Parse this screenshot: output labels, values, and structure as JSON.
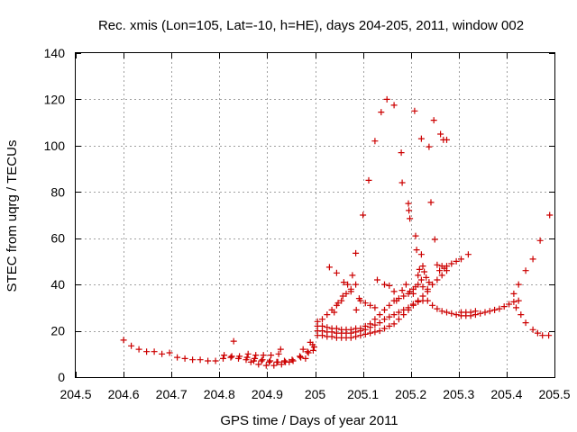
{
  "chart_data": {
    "type": "scatter",
    "title": "Rec. xmis (Lon=105, Lat=-10, h=HE), days 204-205, 2011, window 002",
    "xlabel": "GPS time / Days of year 2011",
    "ylabel": "STEC from uqrg / TECUs",
    "xlim": [
      204.5,
      205.5
    ],
    "ylim": [
      0,
      140
    ],
    "xticks": [
      "204.5",
      "204.6",
      "204.7",
      "204.8",
      "204.9",
      "205",
      "205.1",
      "205.2",
      "205.3",
      "205.4",
      "205.5"
    ],
    "xtick_values": [
      204.5,
      204.6,
      204.7,
      204.8,
      204.9,
      205.0,
      205.1,
      205.2,
      205.3,
      205.4,
      205.5
    ],
    "yticks": [
      "0",
      "20",
      "40",
      "60",
      "80",
      "100",
      "120",
      "140"
    ],
    "ytick_values": [
      0,
      20,
      40,
      60,
      80,
      100,
      120,
      140
    ],
    "grid": true,
    "marker": "+",
    "color": "#cc0000",
    "points": [
      [
        204.6,
        16
      ],
      [
        204.616,
        13.5
      ],
      [
        204.632,
        12
      ],
      [
        204.648,
        11
      ],
      [
        204.664,
        11
      ],
      [
        204.68,
        10
      ],
      [
        204.696,
        10.5
      ],
      [
        204.712,
        8.5
      ],
      [
        204.728,
        8
      ],
      [
        204.744,
        7.5
      ],
      [
        204.76,
        7.5
      ],
      [
        204.776,
        7
      ],
      [
        204.792,
        7
      ],
      [
        204.808,
        8
      ],
      [
        204.824,
        8.5
      ],
      [
        204.83,
        15.5
      ],
      [
        204.84,
        8
      ],
      [
        204.856,
        7.5
      ],
      [
        204.872,
        7
      ],
      [
        204.888,
        7
      ],
      [
        204.904,
        6.5
      ],
      [
        204.92,
        6.5
      ],
      [
        204.936,
        7
      ],
      [
        204.952,
        7.5
      ],
      [
        204.968,
        9
      ],
      [
        204.984,
        11
      ],
      [
        204.995,
        14
      ],
      [
        204.81,
        9.5
      ],
      [
        204.826,
        9
      ],
      [
        204.842,
        9
      ],
      [
        204.858,
        8.5
      ],
      [
        204.874,
        8
      ],
      [
        204.89,
        7.5
      ],
      [
        204.906,
        7
      ],
      [
        204.922,
        6.5
      ],
      [
        204.938,
        6.5
      ],
      [
        204.954,
        7
      ],
      [
        204.97,
        8.5
      ],
      [
        204.986,
        10.5
      ],
      [
        204.998,
        13
      ],
      [
        204.86,
        10
      ],
      [
        204.876,
        9.5
      ],
      [
        204.892,
        9.5
      ],
      [
        204.908,
        9.5
      ],
      [
        204.924,
        10
      ],
      [
        204.928,
        12
      ],
      [
        204.866,
        6.5
      ],
      [
        204.882,
        5.5
      ],
      [
        204.898,
        5
      ],
      [
        204.914,
        5
      ],
      [
        204.93,
        5.5
      ],
      [
        204.946,
        6.5
      ],
      [
        204.975,
        12
      ],
      [
        204.99,
        15
      ],
      [
        204.98,
        8
      ],
      [
        204.996,
        11.5
      ],
      [
        205.005,
        18
      ],
      [
        205.015,
        18
      ],
      [
        205.025,
        17.5
      ],
      [
        205.035,
        17.5
      ],
      [
        205.045,
        17
      ],
      [
        205.055,
        17
      ],
      [
        205.065,
        17
      ],
      [
        205.075,
        17
      ],
      [
        205.085,
        17.5
      ],
      [
        205.095,
        18
      ],
      [
        205.105,
        18.5
      ],
      [
        205.115,
        19
      ],
      [
        205.125,
        19.5
      ],
      [
        205.135,
        20
      ],
      [
        205.145,
        21
      ],
      [
        205.155,
        22
      ],
      [
        205.165,
        23
      ],
      [
        205.175,
        25
      ],
      [
        205.185,
        27
      ],
      [
        205.195,
        29
      ],
      [
        205.205,
        31
      ],
      [
        205.215,
        33
      ],
      [
        205.225,
        35
      ],
      [
        205.235,
        37
      ],
      [
        205.245,
        40
      ],
      [
        205.255,
        42
      ],
      [
        205.265,
        44
      ],
      [
        205.275,
        46
      ],
      [
        205.005,
        20
      ],
      [
        205.015,
        20
      ],
      [
        205.025,
        19.5
      ],
      [
        205.035,
        19.5
      ],
      [
        205.045,
        19
      ],
      [
        205.055,
        19
      ],
      [
        205.065,
        19
      ],
      [
        205.075,
        19
      ],
      [
        205.085,
        19.5
      ],
      [
        205.095,
        20
      ],
      [
        205.105,
        20.5
      ],
      [
        205.115,
        21.5
      ],
      [
        205.125,
        22.5
      ],
      [
        205.135,
        23.5
      ],
      [
        205.145,
        25
      ],
      [
        205.155,
        26
      ],
      [
        205.165,
        27
      ],
      [
        205.175,
        28
      ],
      [
        205.185,
        29
      ],
      [
        205.195,
        30
      ],
      [
        205.205,
        31.5
      ],
      [
        205.215,
        32.5
      ],
      [
        205.225,
        33
      ],
      [
        205.235,
        33
      ],
      [
        205.245,
        31
      ],
      [
        205.255,
        29.5
      ],
      [
        205.265,
        28.5
      ],
      [
        205.275,
        28
      ],
      [
        205.285,
        27.5
      ],
      [
        205.295,
        27
      ],
      [
        205.305,
        26.5
      ],
      [
        205.315,
        26.5
      ],
      [
        205.325,
        26.5
      ],
      [
        205.335,
        27
      ],
      [
        205.005,
        22
      ],
      [
        205.015,
        22
      ],
      [
        205.025,
        21.5
      ],
      [
        205.035,
        21
      ],
      [
        205.045,
        21
      ],
      [
        205.055,
        20.5
      ],
      [
        205.065,
        20.5
      ],
      [
        205.075,
        20.5
      ],
      [
        205.085,
        21
      ],
      [
        205.095,
        21
      ],
      [
        205.105,
        22
      ],
      [
        205.115,
        23
      ],
      [
        205.125,
        25
      ],
      [
        205.135,
        27
      ],
      [
        205.145,
        29
      ],
      [
        205.155,
        31
      ],
      [
        205.165,
        33
      ],
      [
        205.175,
        34
      ],
      [
        205.185,
        35
      ],
      [
        205.195,
        36
      ],
      [
        205.205,
        38
      ],
      [
        205.215,
        40
      ],
      [
        205.225,
        39
      ],
      [
        205.235,
        38
      ],
      [
        205.005,
        24
      ],
      [
        205.015,
        25
      ],
      [
        205.025,
        27
      ],
      [
        205.035,
        29
      ],
      [
        205.045,
        31
      ],
      [
        205.055,
        33
      ],
      [
        205.065,
        36
      ],
      [
        205.075,
        38
      ],
      [
        205.085,
        40
      ],
      [
        205.095,
        33
      ],
      [
        205.105,
        32
      ],
      [
        205.115,
        31
      ],
      [
        205.125,
        30
      ],
      [
        205.04,
        28
      ],
      [
        205.048,
        32
      ],
      [
        205.058,
        35
      ],
      [
        205.068,
        40
      ],
      [
        205.078,
        44
      ],
      [
        205.086,
        29
      ],
      [
        205.092,
        34
      ],
      [
        205.03,
        47.5
      ],
      [
        205.045,
        45
      ],
      [
        205.06,
        41
      ],
      [
        205.075,
        37
      ],
      [
        205.085,
        53.5
      ],
      [
        205.1,
        70
      ],
      [
        205.112,
        85
      ],
      [
        205.125,
        102
      ],
      [
        205.138,
        114.5
      ],
      [
        205.15,
        120
      ],
      [
        205.165,
        117.5
      ],
      [
        205.18,
        97
      ],
      [
        205.182,
        84
      ],
      [
        205.195,
        75
      ],
      [
        205.196,
        72
      ],
      [
        205.198,
        68.5
      ],
      [
        205.21,
        61
      ],
      [
        205.212,
        55
      ],
      [
        205.222,
        53
      ],
      [
        205.225,
        48
      ],
      [
        205.228,
        45.5
      ],
      [
        205.232,
        43
      ],
      [
        205.238,
        41
      ],
      [
        205.242,
        75.5
      ],
      [
        205.25,
        59.5
      ],
      [
        205.255,
        48.5
      ],
      [
        205.265,
        48
      ],
      [
        205.275,
        48
      ],
      [
        205.285,
        49
      ],
      [
        205.295,
        50
      ],
      [
        205.305,
        51
      ],
      [
        205.32,
        53
      ],
      [
        205.208,
        115
      ],
      [
        205.222,
        103
      ],
      [
        205.238,
        99.5
      ],
      [
        205.248,
        111
      ],
      [
        205.262,
        105
      ],
      [
        205.268,
        102.5
      ],
      [
        205.275,
        102.5
      ],
      [
        205.26,
        46
      ],
      [
        205.27,
        47
      ],
      [
        205.13,
        42
      ],
      [
        205.145,
        40
      ],
      [
        205.155,
        39.5
      ],
      [
        205.165,
        37
      ],
      [
        205.17,
        33
      ],
      [
        205.182,
        37.5
      ],
      [
        205.19,
        40
      ],
      [
        205.198,
        37
      ],
      [
        205.205,
        36
      ],
      [
        205.21,
        39
      ],
      [
        205.215,
        44
      ],
      [
        205.218,
        46.5
      ],
      [
        205.222,
        42
      ],
      [
        205.345,
        27.5
      ],
      [
        205.355,
        28
      ],
      [
        205.365,
        28.5
      ],
      [
        205.375,
        29
      ],
      [
        205.385,
        29.5
      ],
      [
        205.395,
        30.5
      ],
      [
        205.405,
        31.5
      ],
      [
        205.415,
        32.5
      ],
      [
        205.425,
        33
      ],
      [
        205.415,
        36
      ],
      [
        205.425,
        40
      ],
      [
        205.44,
        46
      ],
      [
        205.455,
        51
      ],
      [
        205.47,
        59
      ],
      [
        205.49,
        70
      ],
      [
        205.42,
        30
      ],
      [
        205.43,
        27
      ],
      [
        205.44,
        23.5
      ],
      [
        205.455,
        20.5
      ],
      [
        205.465,
        19
      ],
      [
        205.475,
        18
      ],
      [
        205.488,
        18
      ],
      [
        205.305,
        28
      ],
      [
        205.315,
        28
      ],
      [
        205.325,
        28
      ],
      [
        205.335,
        28.5
      ]
    ]
  }
}
